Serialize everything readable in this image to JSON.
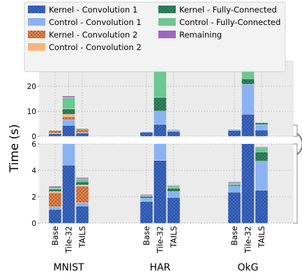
{
  "chart_data": {
    "type": "bar",
    "ylabel": "Time (s)",
    "stacked": true,
    "broken_axis": true,
    "grid": true,
    "legend_placement": "top",
    "upper_panel_ylim": [
      0,
      30
    ],
    "upper_panel_yticks": [
      0,
      10,
      20,
      30
    ],
    "lower_panel_ylim": [
      0,
      6
    ],
    "lower_panel_yticks": [
      0,
      2,
      4,
      6
    ],
    "groups": [
      "MNIST",
      "HAR",
      "OkG"
    ],
    "variants": [
      "Base",
      "Tile-32",
      "TAILS"
    ],
    "series": [
      {
        "name": "Kernel - Convolution 1",
        "color": "#3a68c8",
        "hatch": "crosshatch",
        "values": {
          "MNIST": [
            1.05,
            4.4,
            1.3
          ],
          "HAR": [
            1.65,
            4.75,
            1.95
          ],
          "OkG": [
            2.35,
            8.8,
            2.5
          ]
        }
      },
      {
        "name": "Control - Convolution 1",
        "color": "#8bb2f2",
        "hatch": "none",
        "values": {
          "MNIST": [
            0.2,
            2.2,
            0.25
          ],
          "HAR": [
            0.25,
            5.3,
            0.45
          ],
          "OkG": [
            0.45,
            12.0,
            2.2
          ]
        }
      },
      {
        "name": "Kernel - Convolution 2",
        "color": "#ee8440",
        "hatch": "crosshatch",
        "values": {
          "MNIST": [
            1.05,
            1.2,
            1.25
          ],
          "HAR": [
            0.0,
            0.0,
            0.0
          ],
          "OkG": [
            0.0,
            0.0,
            0.0
          ]
        }
      },
      {
        "name": "Control - Convolution 2",
        "color": "#f6b57d",
        "hatch": "none",
        "values": {
          "MNIST": [
            0.1,
            1.0,
            0.1
          ],
          "HAR": [
            0.0,
            0.0,
            0.0
          ],
          "OkG": [
            0.0,
            0.0,
            0.0
          ]
        }
      },
      {
        "name": "Kernel - Fully-Connected",
        "color": "#2f8a58",
        "hatch": "crosshatch",
        "values": {
          "MNIST": [
            0.18,
            2.1,
            0.25
          ],
          "HAR": [
            0.15,
            5.5,
            0.25
          ],
          "OkG": [
            0.1,
            2.2,
            0.7
          ]
        }
      },
      {
        "name": "Control - Fully-Connected",
        "color": "#6cc790",
        "hatch": "none",
        "values": {
          "MNIST": [
            0.1,
            4.6,
            0.2
          ],
          "HAR": [
            0.05,
            12.5,
            0.15
          ],
          "OkG": [
            0.15,
            4.6,
            0.3
          ]
        }
      },
      {
        "name": "Remaining",
        "color": "#9f66bf",
        "hatch": "none",
        "values": {
          "MNIST": [
            0.12,
            0.6,
            0.1
          ],
          "HAR": [
            0.08,
            0.7,
            0.07
          ],
          "OkG": [
            0.08,
            0.4,
            0.08
          ]
        }
      }
    ]
  }
}
